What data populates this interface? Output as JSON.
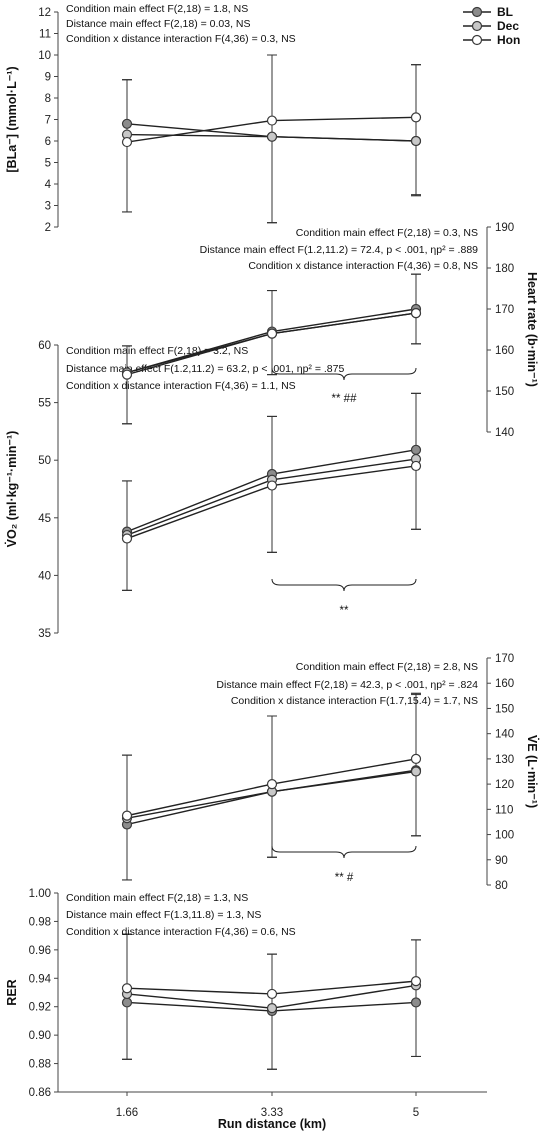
{
  "chart_data": [
    {
      "type": "line",
      "ylabel": "[BLa⁻] (mmol·L⁻¹)",
      "ylim": [
        2,
        12
      ],
      "yticks": [
        "2",
        "3",
        "4",
        "5",
        "6",
        "7",
        "8",
        "9",
        "10",
        "11",
        "12"
      ],
      "x": [
        "1.66",
        "3.33",
        "5"
      ],
      "series": [
        {
          "name": "BL",
          "values": [
            6.8,
            6.2,
            6.0
          ],
          "err_up": [
            2.05,
            3.8,
            3.55
          ],
          "err_down": [
            4.1,
            4.0,
            2.5
          ]
        },
        {
          "name": "Dec",
          "values": [
            6.3,
            6.2,
            6.0
          ],
          "err_up": [
            2.55,
            3.8,
            3.55
          ],
          "err_down": [
            3.6,
            4.0,
            2.5
          ]
        },
        {
          "name": "Hon",
          "values": [
            5.95,
            6.95,
            7.1
          ],
          "err_up": [
            2.9,
            3.05,
            2.45
          ],
          "err_down": [
            3.25,
            4.75,
            3.65
          ]
        }
      ],
      "stats": [
        "Condition main effect F(2,18) = 1.8, NS",
        "Distance  main effect F(2,18) = 0.03, NS",
        "Condition x distance interaction F(4,36) = 0.3, NS"
      ],
      "significance": ""
    },
    {
      "type": "line",
      "ylabel": "Heart rate (b·min⁻¹)",
      "ylim": [
        140,
        190
      ],
      "yticks": [
        "140",
        "150",
        "160",
        "170",
        "180",
        "190"
      ],
      "x": [
        "1.66",
        "3.33",
        "5"
      ],
      "series": [
        {
          "name": "BL",
          "values": [
            154.5,
            164.5,
            170
          ],
          "err_up": [
            6.5,
            10,
            8.5
          ],
          "err_down": [
            12.5,
            10.5,
            8.5
          ]
        },
        {
          "name": "Dec",
          "values": [
            154.5,
            164,
            169
          ],
          "err_up": [
            6.5,
            10.5,
            9.5
          ],
          "err_down": [
            12.5,
            10,
            7.5
          ]
        },
        {
          "name": "Hon",
          "values": [
            154,
            164,
            169
          ],
          "err_up": [
            7,
            10.5,
            9.5
          ],
          "err_down": [
            12,
            10,
            7.5
          ]
        }
      ],
      "stats": [
        "Condition main effect F(2,18) = 0.3, NS",
        "Distance  main effect F(1.2,11.2) = 72.4, p < .001, ηp² = .889",
        "Condition x distance interaction F(4,36) = 0.8, NS"
      ],
      "significance": "** ##"
    },
    {
      "type": "line",
      "ylabel": "V̇O₂ (ml·kg⁻¹·min⁻¹)",
      "ylim": [
        35,
        60
      ],
      "yticks": [
        "35",
        "40",
        "45",
        "50",
        "55",
        "60"
      ],
      "x": [
        "1.66",
        "3.33",
        "5"
      ],
      "series": [
        {
          "name": "BL",
          "values": [
            43.8,
            48.8,
            50.9
          ],
          "err_up": [
            4.4,
            5.0,
            4.9
          ],
          "err_down": [
            5.1,
            6.8,
            6.9
          ]
        },
        {
          "name": "Dec",
          "values": [
            43.5,
            48.3,
            50.1
          ],
          "err_up": [
            4.7,
            5.5,
            5.7
          ],
          "err_down": [
            4.8,
            6.3,
            6.1
          ]
        },
        {
          "name": "Hon",
          "values": [
            43.2,
            47.8,
            49.5
          ],
          "err_up": [
            5.0,
            6.0,
            6.3
          ],
          "err_down": [
            4.5,
            5.8,
            5.5
          ]
        }
      ],
      "stats": [
        "Condition main effect F(2,18) = 3.2, NS",
        "Distance  main effect F(1.2,11.2) = 63.2, p < .001, ηp² = .875",
        "Condition x distance interaction F(4,36) = 1.1, NS"
      ],
      "significance": "**"
    },
    {
      "type": "line",
      "ylabel": "V̇E (L·min⁻¹)",
      "ylim": [
        80,
        170
      ],
      "yticks": [
        "80",
        "90",
        "100",
        "110",
        "120",
        "130",
        "140",
        "150",
        "160",
        "170"
      ],
      "x": [
        "1.66",
        "3.33",
        "5"
      ],
      "series": [
        {
          "name": "BL",
          "values": [
            104,
            117,
            125.5
          ],
          "err_up": [
            27.5,
            30,
            30.5
          ],
          "err_down": [
            22,
            26,
            26
          ]
        },
        {
          "name": "Dec",
          "values": [
            106.5,
            117,
            125
          ],
          "err_up": [
            25,
            30,
            31
          ],
          "err_down": [
            24.5,
            26,
            25.5
          ]
        },
        {
          "name": "Hon",
          "values": [
            107.5,
            120,
            130
          ],
          "err_up": [
            24,
            27,
            25.5
          ],
          "err_down": [
            25.5,
            29,
            30.5
          ]
        }
      ],
      "stats": [
        "Condition main effect F(2,18) = 2.8, NS",
        "Distance  main effect F(2,18) = 42.3, p < .001, ηp² = .824",
        "Condition x distance interaction F(1.7,15.4) = 1.7, NS"
      ],
      "significance": "** #"
    },
    {
      "type": "line",
      "ylabel": "RER",
      "ylim": [
        0.86,
        1.0
      ],
      "yticks": [
        "0.86",
        "0.88",
        "0.90",
        "0.92",
        "0.94",
        "0.96",
        "0.98",
        "1.00"
      ],
      "xticks": [
        "1.66",
        "3.33",
        "5"
      ],
      "xlabel": "Run distance (km)",
      "x": [
        "1.66",
        "3.33",
        "5"
      ],
      "series": [
        {
          "name": "BL",
          "values": [
            0.923,
            0.917,
            0.923
          ],
          "err_up": [
            0.048,
            0.04,
            0.044
          ],
          "err_down": [
            0.04,
            0.041,
            0.038
          ]
        },
        {
          "name": "Dec",
          "values": [
            0.929,
            0.919,
            0.935
          ],
          "err_up": [
            0.042,
            0.038,
            0.032
          ],
          "err_down": [
            0.046,
            0.043,
            0.05
          ]
        },
        {
          "name": "Hon",
          "values": [
            0.933,
            0.929,
            0.938
          ],
          "err_up": [
            0.038,
            0.028,
            0.029
          ],
          "err_down": [
            0.05,
            0.053,
            0.053
          ]
        }
      ],
      "stats": [
        "Condition main effect F(2,18) = 1.3, NS",
        "Distance  main effect F(1.3,11.8) = 1.3, NS",
        "Condition x distance interaction F(4,36) = 0.6, NS"
      ],
      "significance": ""
    }
  ],
  "legend": [
    {
      "name": "BL",
      "color": "#8c8c8c"
    },
    {
      "name": "Dec",
      "color": "#c8c8c8"
    },
    {
      "name": "Hon",
      "color": "#ffffff"
    }
  ],
  "marker_stroke": "#3a3a3a"
}
